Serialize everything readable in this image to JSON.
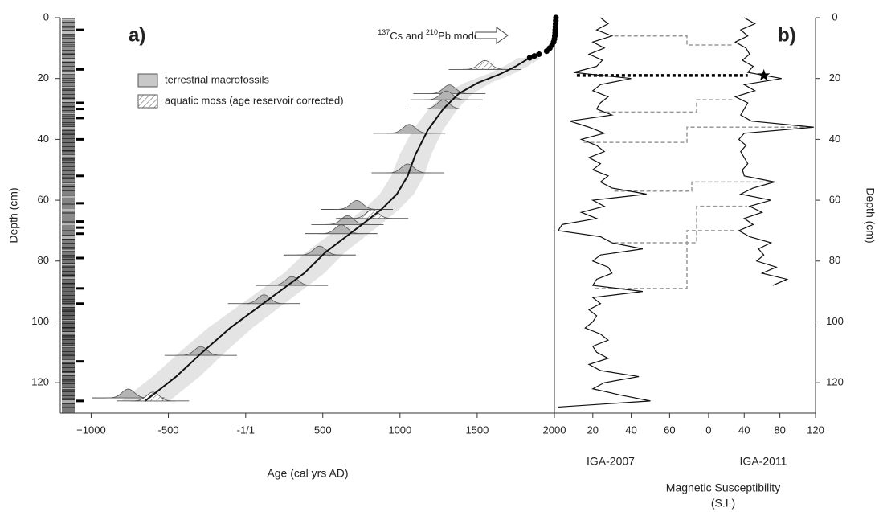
{
  "chart_data": [
    {
      "type": "line",
      "panel_label": "a)",
      "xlabel": "Age (cal yrs AD)",
      "ylabel": "Depth (cm)",
      "xlim": [
        -1200,
        2000
      ],
      "xticks": [
        {
          "value": -1000,
          "label": "−1000"
        },
        -500,
        {
          "value": 1,
          "label": "-1/1"
        },
        500,
        1000,
        1500,
        2000
      ],
      "ylim": [
        0,
        130
      ],
      "yticks": [
        0,
        20,
        40,
        60,
        80,
        100,
        120
      ],
      "annotation": [
        "137",
        "Cs and ",
        "210",
        "Pb model"
      ],
      "model": {
        "color": "#111111",
        "age": [
          1840,
          1750,
          1650,
          1500,
          1380,
          1280,
          1180,
          1100,
          1050,
          980,
          880,
          780,
          650,
          520,
          380,
          220,
          60,
          -100,
          -280,
          -450,
          -650
        ],
        "depth": [
          13.2,
          16,
          18.5,
          21.5,
          25,
          30,
          37,
          45,
          52,
          58,
          63,
          67,
          72,
          77,
          84,
          90,
          96,
          102,
          110,
          118,
          126
        ]
      },
      "lead_model": {
        "color": "#000000",
        "age": [
          2010,
          2009,
          2008,
          2007,
          2006,
          2005,
          2003,
          2000,
          1995,
          1985,
          1970,
          1950,
          1900,
          1870,
          1840
        ],
        "depth": [
          0,
          1,
          2,
          3,
          4,
          5,
          6,
          7,
          8,
          9,
          10,
          11,
          12,
          12.6,
          13.2
        ]
      },
      "series": [
        {
          "name": "terrestrial macrofossils",
          "color": "#b4b4b4",
          "age": [
            1320,
            1300,
            1280,
            1060,
            1050,
            720,
            660,
            620,
            480,
            300,
            120,
            -290,
            -760
          ],
          "depth": [
            25,
            27,
            30,
            38,
            51,
            63,
            68,
            71,
            78,
            88,
            94,
            111,
            125
          ]
        },
        {
          "name": "aquatic moss (age reservoir corrected)",
          "color": "hatch",
          "age": [
            1550,
            820,
            -600
          ],
          "depth": [
            17,
            66,
            126
          ]
        }
      ],
      "sample_depths": [
        4,
        17,
        28,
        30,
        33,
        40,
        52,
        61,
        67,
        69,
        71,
        79,
        89,
        94,
        113,
        126
      ]
    },
    {
      "type": "line",
      "panel_label": "b)",
      "xlabel": "Magnetic Susceptibility",
      "xlabel_unit": "(S.I.)",
      "ylabel": "Depth (cm)",
      "ylim": [
        0,
        130
      ],
      "yticks": [
        0,
        20,
        40,
        60,
        80,
        100,
        120
      ],
      "series": [
        {
          "name": "IGA-2007",
          "color": "#111111",
          "xlim": [
            0,
            136
          ],
          "xticks": [
            20,
            40,
            60
          ],
          "depth": [
            0,
            2,
            4,
            6,
            8,
            10,
            12,
            14,
            16,
            18,
            20,
            22,
            24,
            26,
            28,
            30,
            32,
            34,
            36,
            38,
            40,
            42,
            44,
            46,
            48,
            50,
            52,
            54,
            56,
            58,
            60,
            62,
            64,
            66,
            68,
            70,
            72,
            74,
            76,
            78,
            80,
            82,
            84,
            86,
            88,
            90,
            92,
            94,
            96,
            98,
            100,
            102,
            104,
            106,
            108,
            110,
            112,
            114,
            116,
            118,
            120,
            122,
            124,
            126,
            128
          ],
          "values": [
            24,
            28,
            22,
            30,
            20,
            26,
            18,
            25,
            22,
            10,
            40,
            24,
            20,
            28,
            24,
            22,
            30,
            8,
            18,
            26,
            14,
            22,
            26,
            18,
            24,
            20,
            28,
            24,
            30,
            48,
            20,
            26,
            14,
            22,
            4,
            2,
            24,
            30,
            46,
            24,
            20,
            28,
            30,
            22,
            20,
            46,
            20,
            24,
            18,
            22,
            20,
            16,
            24,
            28,
            20,
            22,
            28,
            18,
            24,
            44,
            26,
            20,
            34,
            50,
            2
          ]
        },
        {
          "name": "IGA-2011",
          "color": "#111111",
          "xlim": [
            -173,
            120
          ],
          "xticks": [
            0,
            40,
            80,
            120
          ],
          "depth": [
            0,
            2,
            4,
            6,
            8,
            10,
            12,
            14,
            16,
            18,
            20,
            22,
            24,
            26,
            28,
            30,
            32,
            34,
            36,
            38,
            40,
            42,
            44,
            46,
            48,
            50,
            52,
            54,
            56,
            58,
            60,
            62,
            64,
            66,
            68,
            70,
            72,
            74,
            76,
            78,
            80,
            82,
            84,
            86,
            88
          ],
          "values": [
            40,
            52,
            36,
            44,
            30,
            42,
            46,
            38,
            50,
            44,
            82,
            40,
            52,
            30,
            44,
            40,
            36,
            48,
            118,
            40,
            34,
            42,
            36,
            40,
            44,
            38,
            40,
            74,
            50,
            36,
            70,
            46,
            60,
            40,
            50,
            34,
            46,
            70,
            56,
            62,
            54,
            76,
            60,
            88,
            72
          ]
        }
      ],
      "tie_points": [
        [
          6,
          9
        ],
        [
          19,
          19
        ],
        [
          31,
          27
        ],
        [
          41,
          36
        ],
        [
          57,
          54
        ],
        [
          74,
          62
        ],
        [
          89,
          70
        ]
      ],
      "highlight_tie": 1
    }
  ]
}
